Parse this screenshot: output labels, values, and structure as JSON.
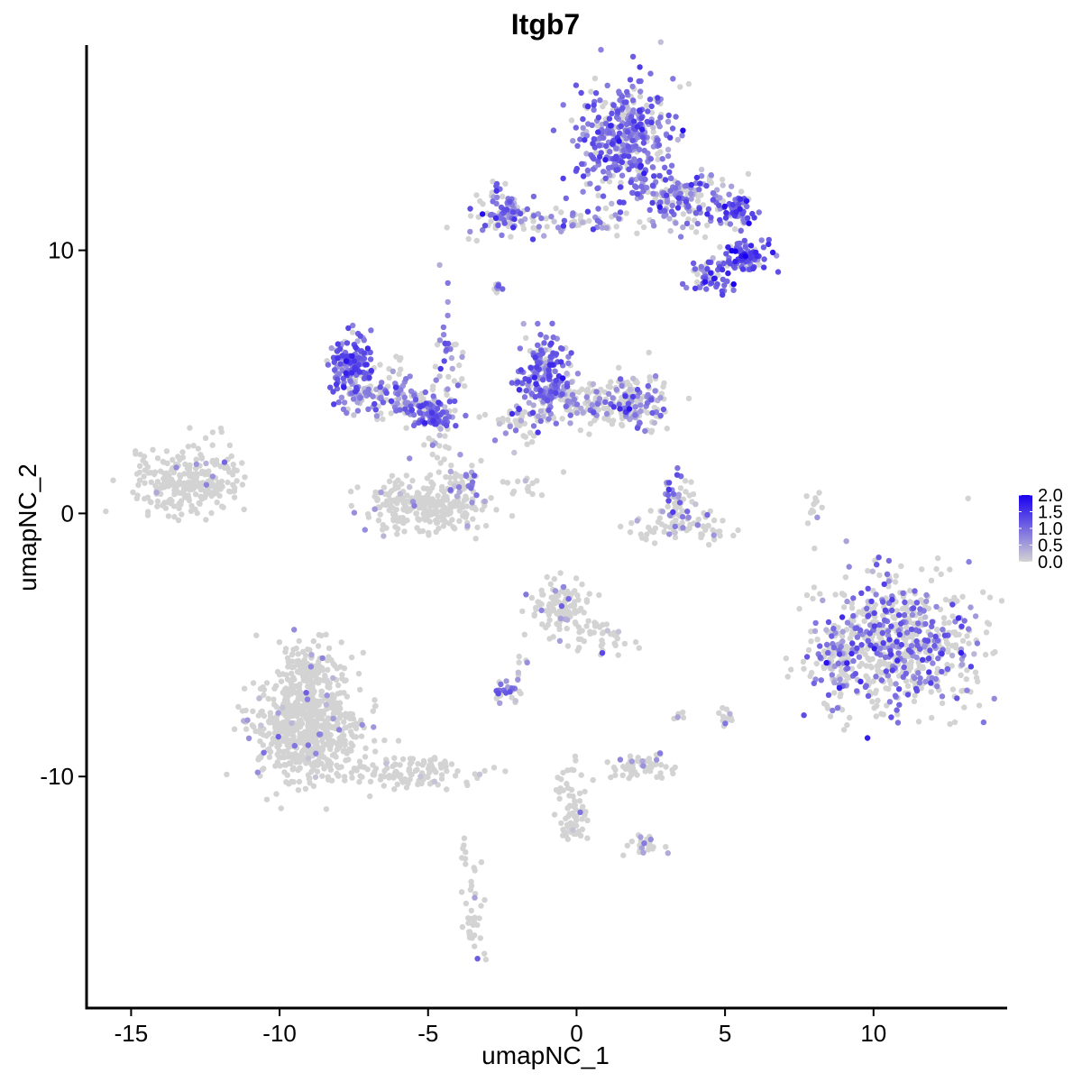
{
  "chart_data": {
    "type": "scatter",
    "title": "Itgb7",
    "xlabel": "umapNC_1",
    "ylabel": "umapNC_2",
    "xlim": [
      -16.5,
      14.5
    ],
    "ylim": [
      -18.8,
      17.8
    ],
    "x_ticks": [
      -15,
      -10,
      -5,
      0,
      5,
      10
    ],
    "x_tick_labels": [
      "-15",
      "-10",
      "-5",
      "0",
      "5",
      "10"
    ],
    "y_ticks": [
      -10,
      0,
      10
    ],
    "y_tick_labels": [
      "-10",
      "0",
      "10"
    ],
    "grid": false,
    "legend": {
      "placement": "right",
      "min": 0.0,
      "max": 2.0,
      "low_color": "#d3d3d3",
      "high_color": "#1a00f0",
      "ticks": [
        2.0,
        1.5,
        1.0,
        0.5,
        0.0
      ],
      "tick_labels": [
        "2.0",
        "1.5",
        "1.0",
        "0.5",
        "0.0"
      ]
    },
    "clusters": [
      {
        "cx": 1.5,
        "cy": 14.3,
        "sx": 0.8,
        "sy": 1.1,
        "n": 420,
        "expr": 0.9,
        "expr_frac": 0.75
      },
      {
        "cx": 3.8,
        "cy": 11.8,
        "sx": 0.9,
        "sy": 0.55,
        "n": 160,
        "expr": 0.8,
        "expr_frac": 0.55
      },
      {
        "cx": 5.4,
        "cy": 11.5,
        "sx": 0.25,
        "sy": 0.35,
        "n": 45,
        "expr": 1.2,
        "expr_frac": 0.85
      },
      {
        "cx": 5.7,
        "cy": 9.8,
        "sx": 0.4,
        "sy": 0.3,
        "n": 80,
        "expr": 1.3,
        "expr_frac": 0.9
      },
      {
        "cx": 4.5,
        "cy": 9.0,
        "sx": 0.35,
        "sy": 0.3,
        "n": 60,
        "expr": 1.0,
        "expr_frac": 0.8
      },
      {
        "cx": -2.5,
        "cy": 11.5,
        "sx": 0.45,
        "sy": 0.4,
        "n": 90,
        "expr": 0.9,
        "expr_frac": 0.65
      },
      {
        "cx": -0.5,
        "cy": 11.1,
        "sx": 1.4,
        "sy": 0.25,
        "n": 70,
        "expr": 0.6,
        "expr_frac": 0.4
      },
      {
        "cx": -2.7,
        "cy": 8.6,
        "sx": 0.15,
        "sy": 0.1,
        "n": 10,
        "expr": 0.9,
        "expr_frac": 0.8
      },
      {
        "cx": -7.6,
        "cy": 5.5,
        "sx": 0.35,
        "sy": 0.6,
        "n": 160,
        "expr": 1.0,
        "expr_frac": 0.85
      },
      {
        "cx": -6.3,
        "cy": 4.5,
        "sx": 0.8,
        "sy": 0.5,
        "n": 120,
        "expr": 0.7,
        "expr_frac": 0.5
      },
      {
        "cx": -4.8,
        "cy": 3.8,
        "sx": 0.45,
        "sy": 0.3,
        "n": 100,
        "expr": 0.9,
        "expr_frac": 0.8
      },
      {
        "cx": -4.3,
        "cy": 5.8,
        "sx": 0.25,
        "sy": 1.2,
        "n": 40,
        "expr": 0.8,
        "expr_frac": 0.6
      },
      {
        "cx": -1.1,
        "cy": 5.2,
        "sx": 0.45,
        "sy": 0.8,
        "n": 200,
        "expr": 1.0,
        "expr_frac": 0.75
      },
      {
        "cx": 0.5,
        "cy": 4.2,
        "sx": 0.9,
        "sy": 0.45,
        "n": 150,
        "expr": 0.6,
        "expr_frac": 0.35
      },
      {
        "cx": 2.0,
        "cy": 4.2,
        "sx": 0.5,
        "sy": 0.5,
        "n": 120,
        "expr": 0.8,
        "expr_frac": 0.5
      },
      {
        "cx": -2.0,
        "cy": 3.5,
        "sx": 0.5,
        "sy": 0.4,
        "n": 40,
        "expr": 0.6,
        "expr_frac": 0.3
      },
      {
        "cx": -13.3,
        "cy": 1.1,
        "sx": 0.75,
        "sy": 0.6,
        "n": 230,
        "expr": 0.5,
        "expr_frac": 0.02
      },
      {
        "cx": -12.0,
        "cy": 1.6,
        "sx": 0.45,
        "sy": 0.7,
        "n": 40,
        "expr": 0.5,
        "expr_frac": 0.02
      },
      {
        "cx": -5.0,
        "cy": 0.2,
        "sx": 1.1,
        "sy": 0.5,
        "n": 250,
        "expr": 0.5,
        "expr_frac": 0.04
      },
      {
        "cx": -3.8,
        "cy": 1.2,
        "sx": 0.3,
        "sy": 0.4,
        "n": 35,
        "expr": 0.8,
        "expr_frac": 0.4
      },
      {
        "cx": -4.7,
        "cy": 2.3,
        "sx": 0.3,
        "sy": 0.6,
        "n": 20,
        "expr": 0.7,
        "expr_frac": 0.3
      },
      {
        "cx": -1.8,
        "cy": 1.0,
        "sx": 0.6,
        "sy": 0.3,
        "n": 15,
        "expr": 0.6,
        "expr_frac": 0.3
      },
      {
        "cx": 3.4,
        "cy": 0.6,
        "sx": 0.25,
        "sy": 0.5,
        "n": 50,
        "expr": 0.8,
        "expr_frac": 0.4
      },
      {
        "cx": 3.4,
        "cy": -0.5,
        "sx": 0.9,
        "sy": 0.3,
        "n": 70,
        "expr": 0.6,
        "expr_frac": 0.1
      },
      {
        "cx": 8.0,
        "cy": 0.2,
        "sx": 0.15,
        "sy": 0.5,
        "n": 12,
        "expr": 0.5,
        "expr_frac": 0.05
      },
      {
        "cx": 10.7,
        "cy": -5.0,
        "sx": 1.3,
        "sy": 1.3,
        "n": 700,
        "expr": 0.9,
        "expr_frac": 0.35
      },
      {
        "cx": 8.7,
        "cy": -5.8,
        "sx": 0.35,
        "sy": 0.8,
        "n": 60,
        "expr": 0.8,
        "expr_frac": 0.5
      },
      {
        "cx": -0.5,
        "cy": -3.5,
        "sx": 0.5,
        "sy": 0.55,
        "n": 110,
        "expr": 0.5,
        "expr_frac": 0.05
      },
      {
        "cx": 0.8,
        "cy": -4.8,
        "sx": 0.5,
        "sy": 0.45,
        "n": 40,
        "expr": 0.5,
        "expr_frac": 0.05
      },
      {
        "cx": -2.4,
        "cy": -6.8,
        "sx": 0.3,
        "sy": 0.25,
        "n": 30,
        "expr": 0.8,
        "expr_frac": 0.5
      },
      {
        "cx": -1.8,
        "cy": -5.7,
        "sx": 0.15,
        "sy": 0.4,
        "n": 8,
        "expr": 0.7,
        "expr_frac": 0.4
      },
      {
        "cx": -9.0,
        "cy": -8.2,
        "sx": 0.9,
        "sy": 1.0,
        "n": 650,
        "expr": 0.5,
        "expr_frac": 0.03
      },
      {
        "cx": -9.0,
        "cy": -6.0,
        "sx": 0.5,
        "sy": 0.5,
        "n": 120,
        "expr": 0.5,
        "expr_frac": 0.03
      },
      {
        "cx": -5.5,
        "cy": -9.8,
        "sx": 1.2,
        "sy": 0.35,
        "n": 120,
        "expr": 0.5,
        "expr_frac": 0.03
      },
      {
        "cx": -0.2,
        "cy": -10.8,
        "sx": 0.25,
        "sy": 0.9,
        "n": 45,
        "expr": 0.5,
        "expr_frac": 0.02
      },
      {
        "cx": -0.1,
        "cy": -11.8,
        "sx": 0.2,
        "sy": 0.3,
        "n": 25,
        "expr": 0.5,
        "expr_frac": 0.02
      },
      {
        "cx": 2.2,
        "cy": -9.6,
        "sx": 0.5,
        "sy": 0.25,
        "n": 50,
        "expr": 0.7,
        "expr_frac": 0.2
      },
      {
        "cx": 2.3,
        "cy": -12.6,
        "sx": 0.3,
        "sy": 0.2,
        "n": 25,
        "expr": 0.6,
        "expr_frac": 0.1
      },
      {
        "cx": 5.0,
        "cy": -7.6,
        "sx": 0.15,
        "sy": 0.2,
        "n": 12,
        "expr": 0.7,
        "expr_frac": 0.3
      },
      {
        "cx": 3.4,
        "cy": -7.7,
        "sx": 0.1,
        "sy": 0.1,
        "n": 6,
        "expr": 0.6,
        "expr_frac": 0.3
      },
      {
        "cx": -3.5,
        "cy": -15.5,
        "sx": 0.2,
        "sy": 0.9,
        "n": 35,
        "expr": 0.5,
        "expr_frac": 0.05
      },
      {
        "cx": -3.8,
        "cy": -12.8,
        "sx": 0.05,
        "sy": 0.4,
        "n": 6,
        "expr": 0.5,
        "expr_frac": 0.0
      }
    ]
  }
}
